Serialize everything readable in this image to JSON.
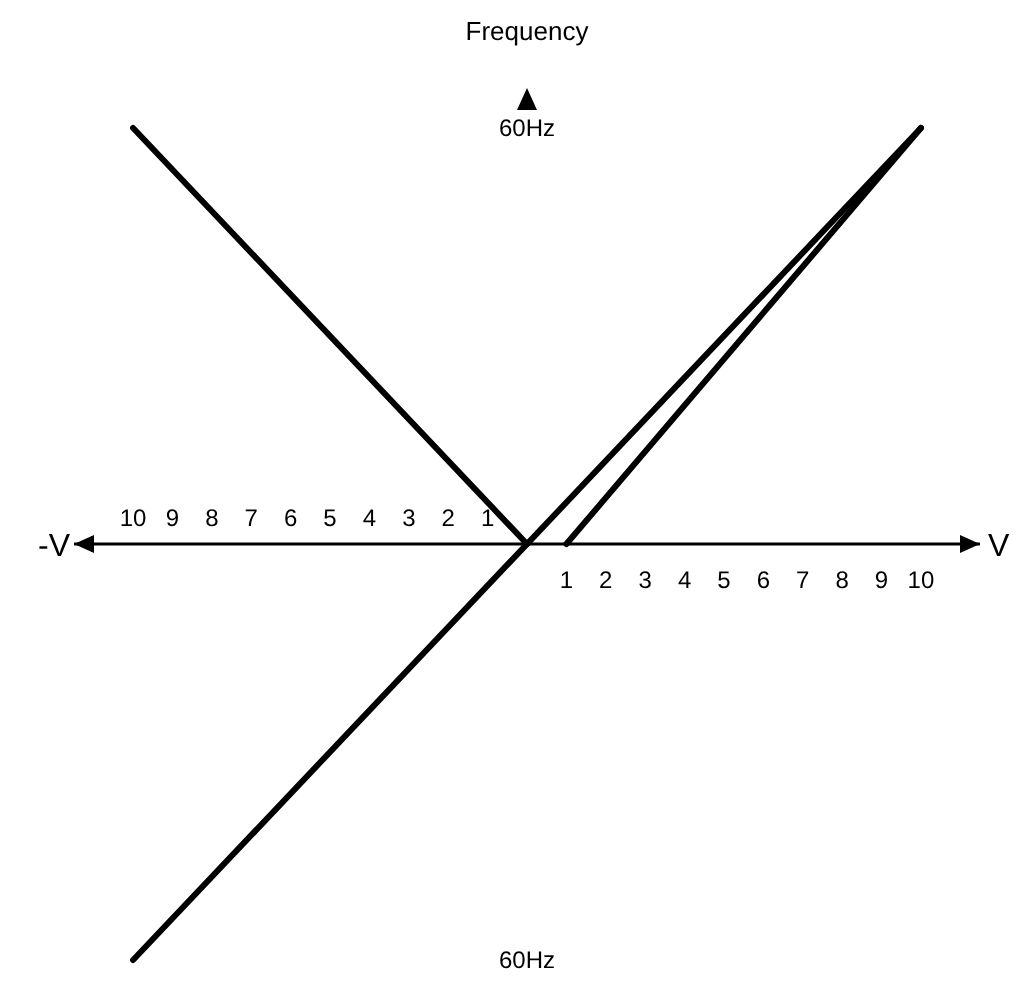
{
  "chart_data": {
    "type": "line",
    "ylabel": "Frequency",
    "xlabel": "V",
    "annotations": [
      "-V"
    ],
    "xlim": [
      -11.5,
      11.5
    ],
    "ylim": [
      -60,
      60
    ],
    "x2lim": [
      -11.5,
      11.5
    ],
    "xticks": [
      {
        "value": -10,
        "label": "10"
      },
      {
        "value": -9,
        "label": "9"
      },
      {
        "value": -8,
        "label": "8"
      },
      {
        "value": -7,
        "label": "7"
      },
      {
        "value": -6,
        "label": "6"
      },
      {
        "value": -5,
        "label": "5"
      },
      {
        "value": -4,
        "label": "4"
      },
      {
        "value": -3,
        "label": "3"
      },
      {
        "value": -2,
        "label": "2"
      },
      {
        "value": -1,
        "label": "1"
      }
    ],
    "x2ticks": [
      1,
      2,
      3,
      4,
      5,
      6,
      7,
      8,
      9,
      10
    ],
    "yticks": [
      {
        "value": 60,
        "label": "60Hz"
      },
      {
        "value": -60,
        "label": "60Hz"
      }
    ],
    "series": [
      {
        "color": "#000000",
        "x": [
          -10,
          10
        ],
        "values": [
          -60,
          60
        ]
      },
      {
        "color": "#000000",
        "x": [
          -10,
          0
        ],
        "values": [
          60,
          0
        ]
      },
      {
        "color": "#000000",
        "x": [
          1,
          10
        ],
        "values": [
          0,
          60
        ]
      }
    ]
  }
}
